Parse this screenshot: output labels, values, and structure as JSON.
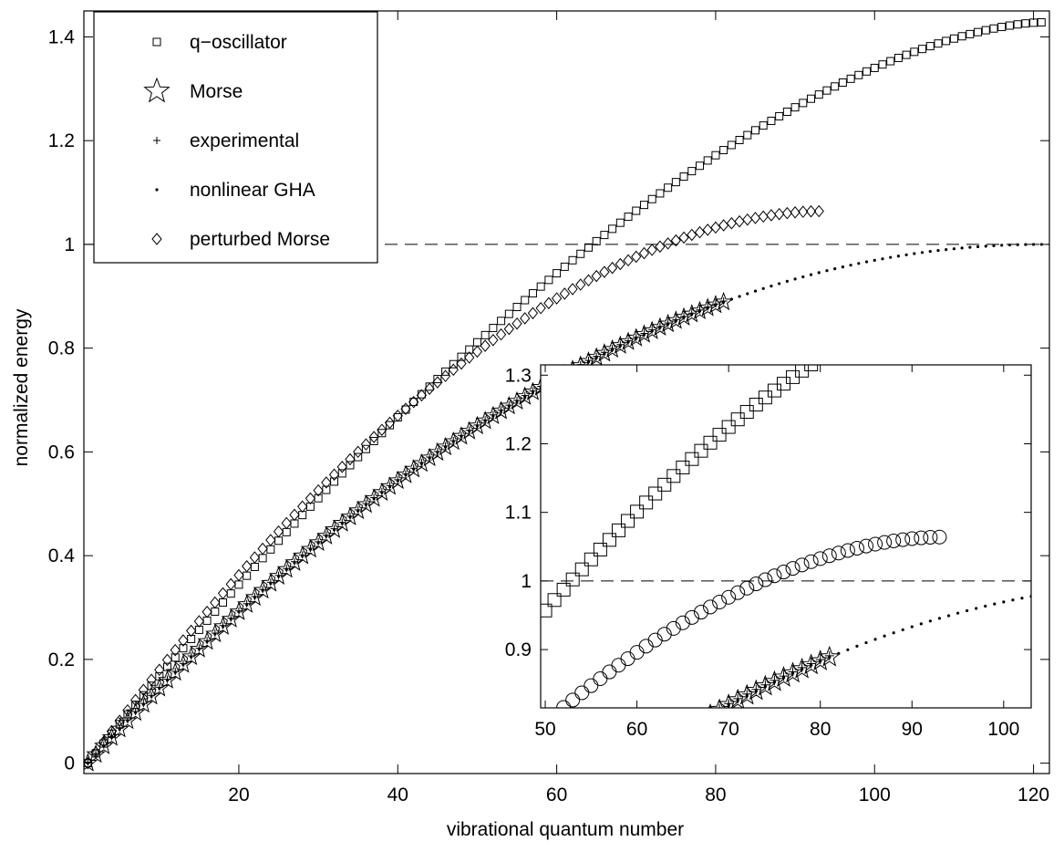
{
  "chart_data": [
    {
      "type": "scatter",
      "panel": "main",
      "xlabel": "vibrational quantum number",
      "ylabel": "normalized energy",
      "xlim": [
        0.5,
        122
      ],
      "ylim": [
        -0.02,
        1.45
      ],
      "xticks": [
        20,
        40,
        60,
        80,
        100,
        120
      ],
      "xtick_labels": [
        "20",
        "40",
        "60",
        "80",
        "100",
        "120"
      ],
      "yticks": [
        0,
        0.2,
        0.4,
        0.6,
        0.8,
        1.0,
        1.2,
        1.4
      ],
      "ytick_labels": [
        "0",
        "0.2",
        "0.4",
        "0.6",
        "0.8",
        "1",
        "1.2",
        "1.4"
      ],
      "grid": false,
      "legend_position": "top-left",
      "reference_line": {
        "y": 1.0,
        "style": "dashed"
      },
      "series": [
        {
          "name": "q−oscillator",
          "marker": "square",
          "n_from": 1,
          "n_to": 121,
          "peak": 1.428,
          "exponent": 1.6
        },
        {
          "name": "Morse",
          "marker": "star",
          "n_from": 1,
          "n_to": 81,
          "model": "morse",
          "morse_nmax": 121
        },
        {
          "name": "experimental",
          "marker": "plus",
          "n_from": 1,
          "n_to": 81,
          "model": "morse",
          "morse_nmax": 121,
          "y_offset": 0.002
        },
        {
          "name": "nonlinear GHA",
          "marker": "dot",
          "n_from": 1,
          "n_to": 121,
          "model": "morse",
          "morse_nmax": 121
        },
        {
          "name": "perturbed Morse",
          "marker": "diamond",
          "n_from": 1,
          "n_to": 93,
          "peak": 1.064,
          "exponent": 1.8
        }
      ]
    },
    {
      "type": "scatter",
      "panel": "inset",
      "xlim": [
        49.5,
        103
      ],
      "ylim": [
        0.815,
        1.315
      ],
      "xticks": [
        50,
        60,
        70,
        80,
        90,
        100
      ],
      "xtick_labels": [
        "50",
        "60",
        "70",
        "80",
        "90",
        "100"
      ],
      "yticks": [
        0.9,
        1.0,
        1.1,
        1.2,
        1.3
      ],
      "ytick_labels": [
        "0.9",
        "1",
        "1.1",
        "1.2",
        "1.3"
      ],
      "reference_line": {
        "y": 1.0,
        "style": "dashed"
      },
      "series": [
        {
          "marker": "square",
          "n_from": 50,
          "n_to": 99,
          "peak": 1.428,
          "exponent": 1.6
        },
        {
          "marker": "star",
          "n_from": 50,
          "n_to": 81,
          "model": "morse",
          "morse_nmax": 121
        },
        {
          "marker": "plus",
          "n_from": 50,
          "n_to": 81,
          "model": "morse",
          "morse_nmax": 121,
          "y_offset": 0.002
        },
        {
          "marker": "dot",
          "n_from": 50,
          "n_to": 103,
          "model": "morse",
          "morse_nmax": 121
        },
        {
          "marker": "circle",
          "n_from": 50,
          "n_to": 93,
          "peak": 1.064,
          "exponent": 1.8
        }
      ]
    }
  ]
}
